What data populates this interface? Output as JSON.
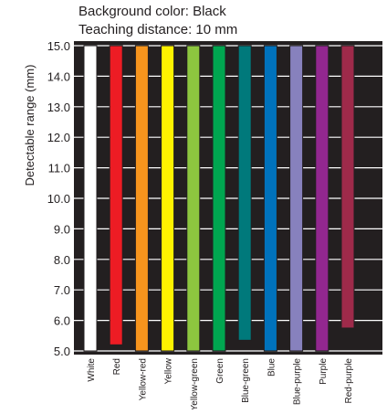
{
  "chart_data": {
    "type": "bar",
    "title": "Background color: Black",
    "subtitle": "Teaching distance: 10 mm",
    "xlabel": "",
    "ylabel": "Detectable range (mm)",
    "ylim": [
      5.0,
      15.0
    ],
    "yticks": [
      5.0,
      6.0,
      7.0,
      8.0,
      9.0,
      10.0,
      11.0,
      12.0,
      13.0,
      14.0,
      15.0
    ],
    "ytick_labels": [
      "5.0",
      "6.0",
      "7.0",
      "8.0",
      "9.0",
      "10.0",
      "11.0",
      "12.0",
      "13.0",
      "14.0",
      "15.0"
    ],
    "grid": true,
    "background_color": "#231f20",
    "grid_color": "#ffffff",
    "categories": [
      "White",
      "Red",
      "Yellow-red",
      "Yellow",
      "Yellow-green",
      "Green",
      "Blue-green",
      "Blue",
      "Blue-purple",
      "Purple",
      "Red-purple"
    ],
    "bars": [
      {
        "category": "White",
        "low": 5.0,
        "high": 15.0,
        "color": "#ffffff"
      },
      {
        "category": "Red",
        "low": 5.2,
        "high": 15.0,
        "color": "#ed1c24"
      },
      {
        "category": "Yellow-red",
        "low": 5.0,
        "high": 15.0,
        "color": "#f7941d"
      },
      {
        "category": "Yellow",
        "low": 5.0,
        "high": 15.0,
        "color": "#fff200"
      },
      {
        "category": "Yellow-green",
        "low": 5.0,
        "high": 15.0,
        "color": "#8dc63f"
      },
      {
        "category": "Green",
        "low": 5.0,
        "high": 15.0,
        "color": "#00a650"
      },
      {
        "category": "Blue-green",
        "low": 5.35,
        "high": 15.0,
        "color": "#00797b"
      },
      {
        "category": "Blue",
        "low": 5.0,
        "high": 15.0,
        "color": "#0072bc"
      },
      {
        "category": "Blue-purple",
        "low": 5.0,
        "high": 15.0,
        "color": "#8781bd"
      },
      {
        "category": "Purple",
        "low": 5.0,
        "high": 15.0,
        "color": "#92278f"
      },
      {
        "category": "Red-purple",
        "low": 5.75,
        "high": 15.0,
        "color": "#9e2a4a"
      }
    ]
  }
}
